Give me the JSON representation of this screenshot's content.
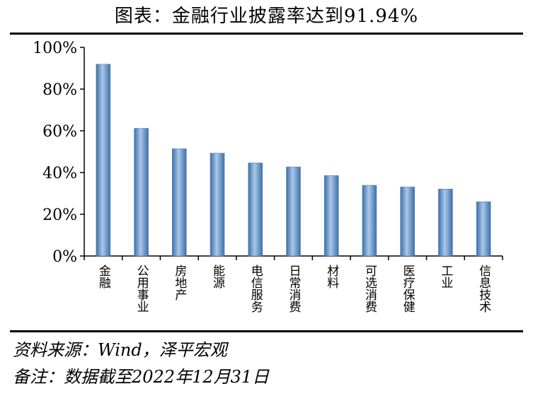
{
  "title": "图表：金融行业披露率达到91.94%",
  "chart_data": {
    "type": "bar",
    "categories": [
      "金融",
      "公用事业",
      "房地产",
      "能源",
      "电信服务",
      "日常消费",
      "材料",
      "可选消费",
      "医疗保健",
      "工业",
      "信息技术"
    ],
    "values": [
      91.94,
      61.2,
      51.4,
      49.3,
      44.6,
      42.7,
      38.6,
      33.9,
      33.1,
      32.1,
      26.0
    ],
    "y_ticks": [
      "0%",
      "20%",
      "40%",
      "60%",
      "80%",
      "100%"
    ],
    "ylim": [
      0,
      100
    ],
    "bar_color": "#5b8ec4",
    "grid": false
  },
  "footer": {
    "source": "资料来源：Wind，泽平宏观",
    "note": "备注：数据截至2022年12月31日"
  }
}
